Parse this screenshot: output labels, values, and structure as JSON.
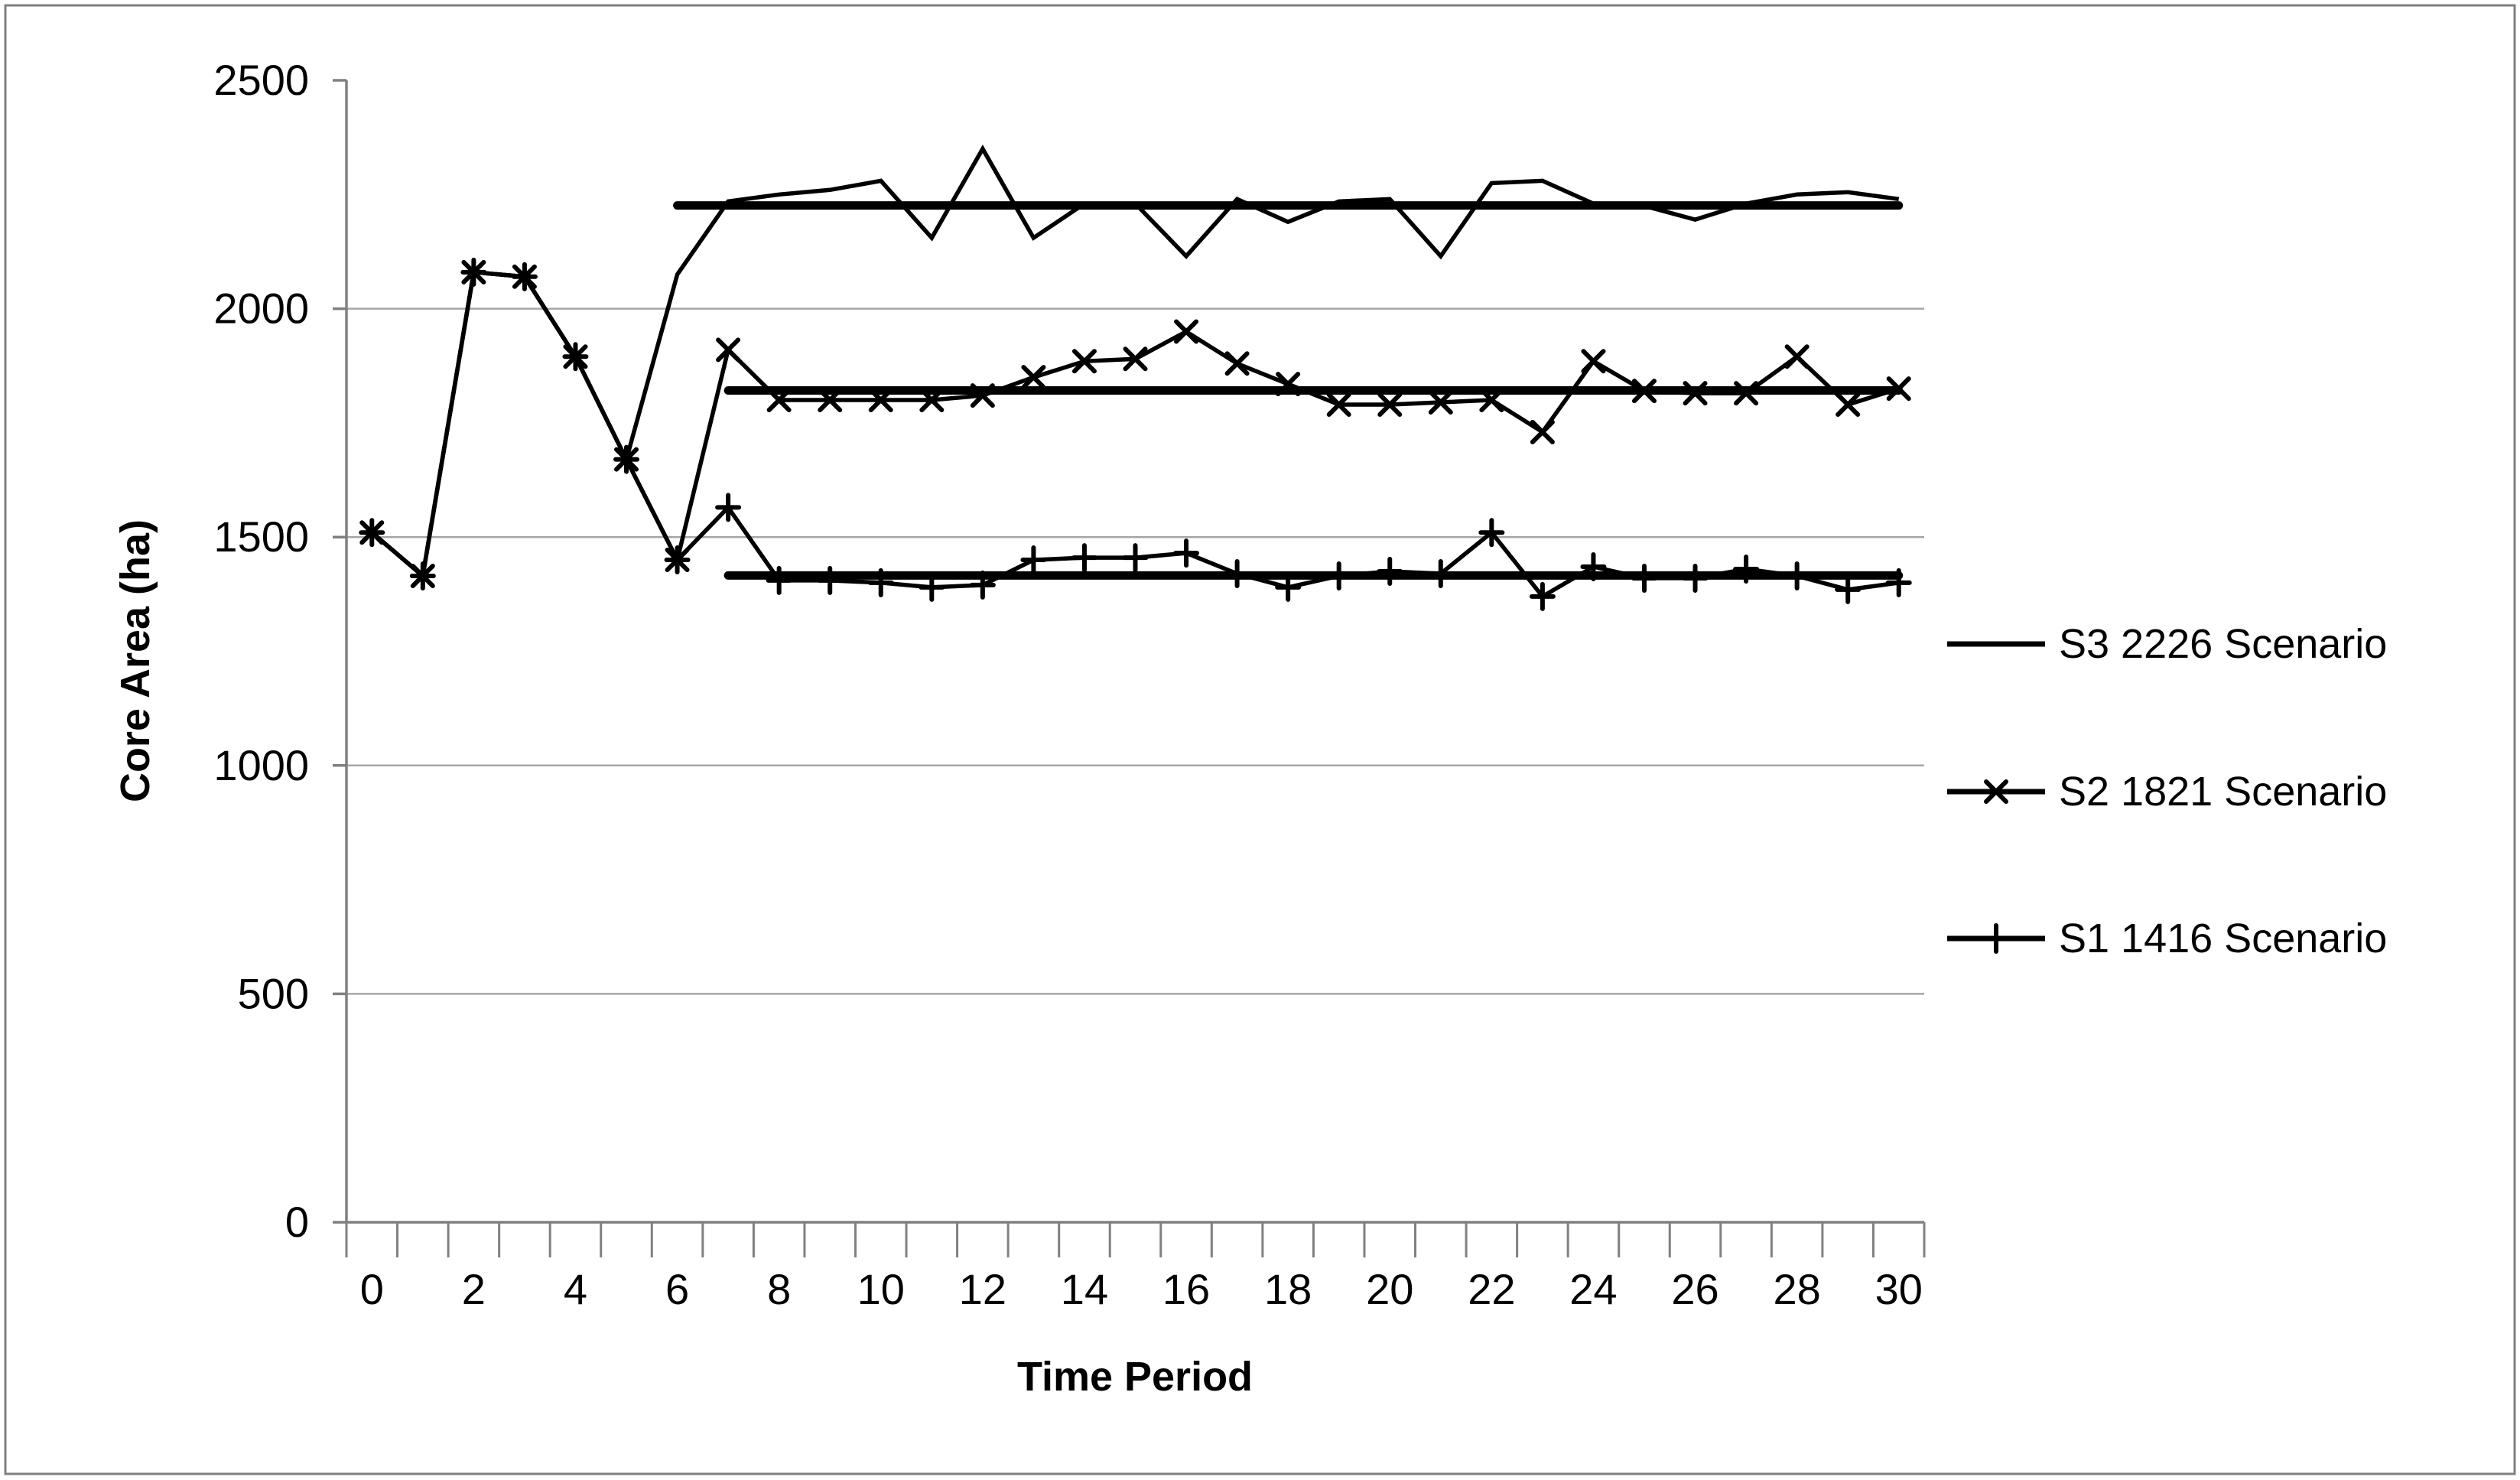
{
  "chart_data": {
    "type": "line",
    "title": "",
    "xlabel": "Time Period",
    "ylabel": "Core Area (ha)",
    "x": [
      0,
      1,
      2,
      3,
      4,
      5,
      6,
      7,
      8,
      9,
      10,
      11,
      12,
      13,
      14,
      15,
      16,
      17,
      18,
      19,
      20,
      21,
      22,
      23,
      24,
      25,
      26,
      27,
      28,
      29,
      30
    ],
    "x_tick_labels": [
      "0",
      "2",
      "4",
      "6",
      "8",
      "10",
      "12",
      "14",
      "16",
      "18",
      "20",
      "22",
      "24",
      "26",
      "28",
      "30"
    ],
    "y_ticks": [
      0,
      500,
      1000,
      1500,
      2000,
      2500
    ],
    "gridline_values": [
      500,
      1000,
      1500,
      2000
    ],
    "ylim": [
      0,
      2500
    ],
    "xlim": [
      -0.5,
      30.5
    ],
    "grid": "horizontal",
    "legend_position": "right",
    "series": [
      {
        "name": "S3 2226 Scenario",
        "marker": "none",
        "values": [
          1510,
          1415,
          2080,
          2070,
          1895,
          1670,
          2075,
          2235,
          2250,
          2260,
          2280,
          2155,
          2350,
          2155,
          2230,
          2230,
          2115,
          2240,
          2190,
          2235,
          2240,
          2115,
          2275,
          2280,
          2230,
          2225,
          2195,
          2230,
          2250,
          2255,
          2240
        ]
      },
      {
        "name": "S2 1821 Scenario",
        "marker": "x",
        "values": [
          1510,
          1415,
          2080,
          2070,
          1895,
          1670,
          1450,
          1910,
          1800,
          1800,
          1800,
          1800,
          1810,
          1850,
          1885,
          1890,
          1950,
          1880,
          1835,
          1790,
          1790,
          1795,
          1800,
          1730,
          1885,
          1820,
          1815,
          1815,
          1895,
          1790,
          1825
        ]
      },
      {
        "name": "S1 1416 Scenario",
        "marker": "plus",
        "values": [
          1510,
          1415,
          2080,
          2070,
          1895,
          1670,
          1450,
          1565,
          1405,
          1405,
          1400,
          1390,
          1395,
          1450,
          1455,
          1455,
          1465,
          1420,
          1390,
          1415,
          1425,
          1420,
          1510,
          1370,
          1435,
          1410,
          1410,
          1430,
          1415,
          1385,
          1400
        ]
      }
    ],
    "target_lines": [
      {
        "series": "S3 2226 Scenario",
        "value": 2226,
        "x_start": 6,
        "x_end": 30
      },
      {
        "series": "S2 1821 Scenario",
        "value": 1821,
        "x_start": 7,
        "x_end": 30
      },
      {
        "series": "S1 1416 Scenario",
        "value": 1416,
        "x_start": 7,
        "x_end": 30
      }
    ],
    "colors": {
      "series_color": "#000000",
      "axis_color": "#808080",
      "gridline_color": "#a6a6a6",
      "border_color": "#7f7f7f",
      "text_color": "#000000",
      "background": "#ffffff"
    }
  }
}
